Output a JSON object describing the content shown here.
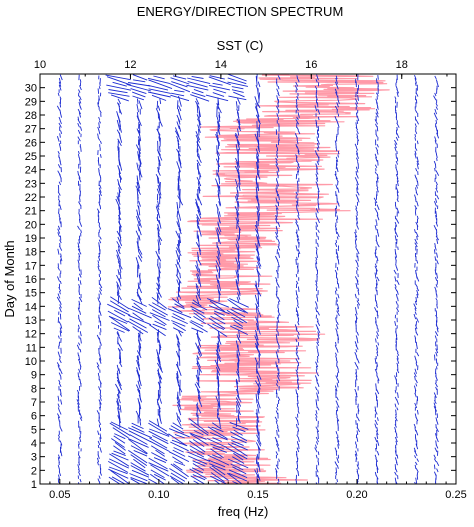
{
  "chart_data": {
    "type": "scatter",
    "title": "ENERGY/DIRECTION SPECTRUM",
    "xlabel": "freq (Hz)",
    "ylabel": "Day of Month",
    "x2label": "SST (C)",
    "xlim": [
      0.04,
      0.25
    ],
    "ylim": [
      1,
      31
    ],
    "x2lim": [
      10,
      19.2
    ],
    "x_ticks": [
      "0.05",
      "0.10",
      "0.15",
      "0.20",
      "0.25"
    ],
    "x2_ticks": [
      "10",
      "12",
      "14",
      "16",
      "18"
    ],
    "y_ticks": [
      "1",
      "2",
      "3",
      "4",
      "5",
      "6",
      "7",
      "8",
      "9",
      "10",
      "11",
      "12",
      "13",
      "14",
      "15",
      "16",
      "17",
      "18",
      "19",
      "20",
      "21",
      "22",
      "23",
      "24",
      "25",
      "26",
      "27",
      "28",
      "29",
      "30"
    ],
    "grid": false,
    "legend": "none",
    "series": [
      {
        "kind": "sst",
        "color": "#ff9aa8",
        "points": [
          [
            15.2,
            1
          ],
          [
            14.0,
            2
          ],
          [
            14.3,
            3
          ],
          [
            13.8,
            4
          ],
          [
            14.0,
            5
          ],
          [
            14.3,
            6
          ],
          [
            13.8,
            7
          ],
          [
            14.5,
            8
          ],
          [
            14.8,
            9
          ],
          [
            14.6,
            10
          ],
          [
            14.8,
            11
          ],
          [
            15.0,
            12
          ],
          [
            14.5,
            13
          ],
          [
            13.7,
            14
          ],
          [
            14.0,
            15
          ],
          [
            14.3,
            16
          ],
          [
            14.0,
            17
          ],
          [
            14.3,
            18
          ],
          [
            14.4,
            19
          ],
          [
            14.4,
            20
          ],
          [
            15.6,
            21
          ],
          [
            15.0,
            22
          ],
          [
            15.1,
            23
          ],
          [
            15.0,
            24
          ],
          [
            15.3,
            25
          ],
          [
            15.2,
            26
          ],
          [
            14.8,
            27
          ],
          [
            16.0,
            28
          ],
          [
            16.2,
            29
          ],
          [
            16.6,
            30
          ],
          [
            16.0,
            31
          ]
        ]
      },
      {
        "kind": "direction-vectors",
        "color": "#1c2bd1",
        "freq_columns": [
          0.05,
          0.06,
          0.07,
          0.08,
          0.09,
          0.1,
          0.11,
          0.12,
          0.13,
          0.14,
          0.15,
          0.16,
          0.17,
          0.18,
          0.19,
          0.2,
          0.21,
          0.22,
          0.23,
          0.24
        ],
        "day_rows": [
          1,
          30.75
        ],
        "row_step_days": 0.25
      }
    ]
  }
}
